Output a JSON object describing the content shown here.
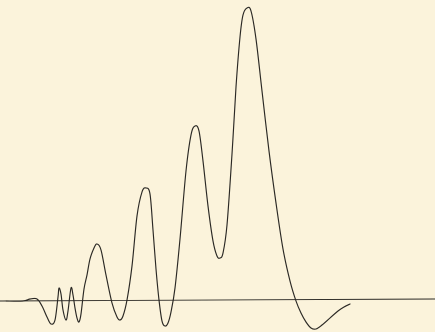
{
  "colors": {
    "paper": "#FBF3DB",
    "ink": "#2a2824"
  },
  "chart_data": {
    "type": "line",
    "title": "",
    "xlabel": "",
    "ylabel": "",
    "grid": false,
    "legend": "none",
    "xlim": [
      0,
      435
    ],
    "ylim": [
      -30,
      300
    ],
    "baseline": 0,
    "series": [
      {
        "name": "",
        "points": [
          [
            6,
            0
          ],
          [
            23,
            0
          ],
          [
            30,
            2
          ],
          [
            37,
            2
          ],
          [
            42,
            -5
          ],
          [
            47,
            -16
          ],
          [
            51,
            -23
          ],
          [
            55,
            -19
          ],
          [
            58,
            4
          ],
          [
            59,
            13
          ],
          [
            61,
            7
          ],
          [
            63,
            -9
          ],
          [
            66,
            -19
          ],
          [
            68,
            -10
          ],
          [
            71,
            13
          ],
          [
            73,
            6
          ],
          [
            75,
            -7
          ],
          [
            77,
            -17
          ],
          [
            79,
            -21
          ],
          [
            81,
            -13
          ],
          [
            84,
            12
          ],
          [
            87,
            26
          ],
          [
            90,
            42
          ],
          [
            94,
            53
          ],
          [
            97,
            57
          ],
          [
            101,
            51
          ],
          [
            106,
            26
          ],
          [
            112,
            -2
          ],
          [
            117,
            -16
          ],
          [
            120,
            -19
          ],
          [
            123,
            -15
          ],
          [
            127,
            1
          ],
          [
            132,
            35
          ],
          [
            137,
            85
          ],
          [
            142,
            109
          ],
          [
            146,
            113
          ],
          [
            150,
            107
          ],
          [
            153,
            71
          ],
          [
            156,
            32
          ],
          [
            159,
            1
          ],
          [
            162,
            -20
          ],
          [
            165,
            -25
          ],
          [
            168,
            -22
          ],
          [
            171,
            -11
          ],
          [
            175,
            13
          ],
          [
            180,
            62
          ],
          [
            186,
            130
          ],
          [
            191,
            166
          ],
          [
            195,
            175
          ],
          [
            199,
            170
          ],
          [
            203,
            140
          ],
          [
            208,
            95
          ],
          [
            213,
            60
          ],
          [
            217,
            45
          ],
          [
            220,
            43
          ],
          [
            223,
            48
          ],
          [
            227,
            76
          ],
          [
            232,
            147
          ],
          [
            236,
            214
          ],
          [
            240,
            264
          ],
          [
            243,
            286
          ],
          [
            247,
            293
          ],
          [
            251,
            290
          ],
          [
            256,
            262
          ],
          [
            262,
            210
          ],
          [
            269,
            150
          ],
          [
            276,
            98
          ],
          [
            283,
            52
          ],
          [
            290,
            20
          ],
          [
            296,
            0
          ],
          [
            301,
            -12
          ],
          [
            306,
            -21
          ],
          [
            311,
            -27
          ],
          [
            316,
            -28
          ],
          [
            322,
            -24
          ],
          [
            330,
            -17
          ],
          [
            338,
            -10
          ],
          [
            344,
            -6
          ],
          [
            350,
            -3
          ]
        ]
      },
      {
        "name": "",
        "points": [
          [
            0,
            0
          ],
          [
            435,
            2
          ]
        ]
      }
    ]
  }
}
